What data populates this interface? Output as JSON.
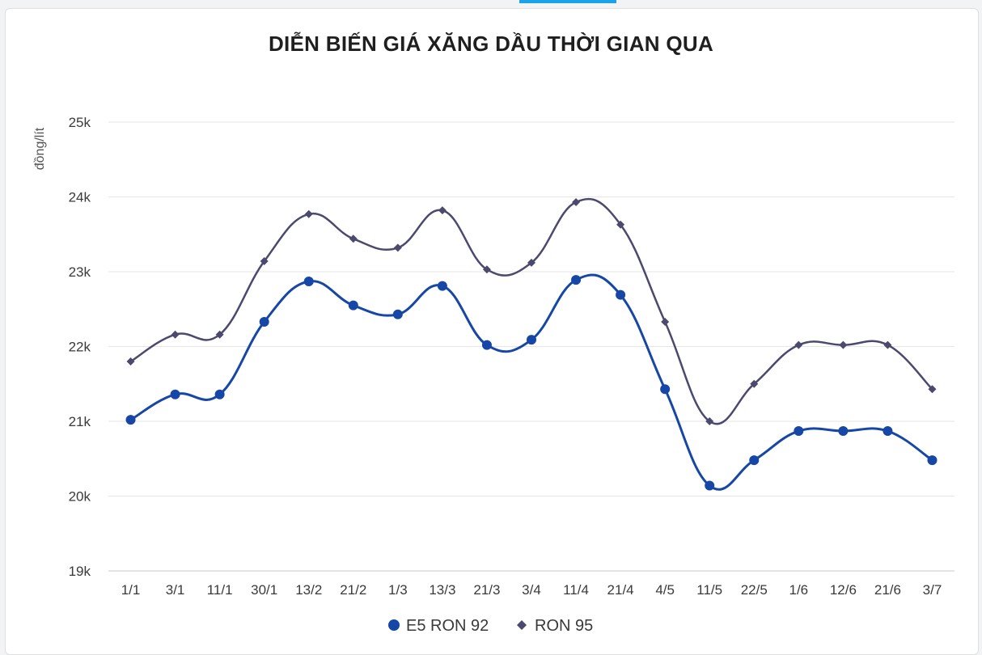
{
  "chart_data": {
    "type": "line",
    "title": "DIỄN BIẾN GIÁ XĂNG DẦU THỜI GIAN QUA",
    "xlabel": "",
    "ylabel": "đồng/lít",
    "categories": [
      "1/1",
      "3/1",
      "11/1",
      "30/1",
      "13/2",
      "21/2",
      "1/3",
      "13/3",
      "21/3",
      "3/4",
      "11/4",
      "21/4",
      "4/5",
      "11/5",
      "22/5",
      "1/6",
      "12/6",
      "21/6",
      "3/7"
    ],
    "ylim": [
      19000,
      25000
    ],
    "yticks": [
      {
        "value": 19000,
        "label": "19k"
      },
      {
        "value": 20000,
        "label": "20k"
      },
      {
        "value": 21000,
        "label": "21k"
      },
      {
        "value": 22000,
        "label": "22k"
      },
      {
        "value": 23000,
        "label": "23k"
      },
      {
        "value": 24000,
        "label": "24k"
      },
      {
        "value": 25000,
        "label": "25k"
      }
    ],
    "grid": true,
    "legend_position": "bottom",
    "series": [
      {
        "name": "E5 RON 92",
        "color": "#1747a6",
        "marker": "circle",
        "values": [
          21020,
          21360,
          21360,
          22330,
          22870,
          22550,
          22430,
          22810,
          22020,
          22090,
          22890,
          22690,
          21430,
          20140,
          20480,
          20870,
          20870,
          20870,
          20480
        ]
      },
      {
        "name": "RON 95",
        "color": "#4b4a6e",
        "marker": "diamond",
        "values": [
          21800,
          22160,
          22160,
          23140,
          23770,
          23440,
          23320,
          23820,
          23030,
          23120,
          23930,
          23630,
          22330,
          21000,
          21500,
          22020,
          22020,
          22020,
          21430
        ]
      }
    ]
  },
  "colors": {
    "accent": "#1aa3e8",
    "grid": "#e6e6e6"
  }
}
